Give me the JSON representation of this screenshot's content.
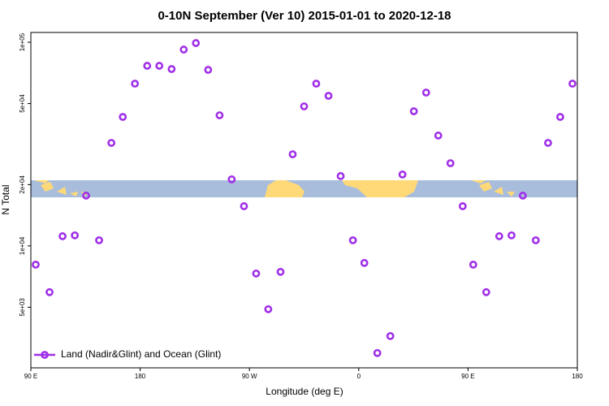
{
  "chart_data": {
    "type": "scatter",
    "title": "0-10N September (Ver 10)   2015-01-01 to 2020-12-18",
    "xlabel": "Longitude (deg E)",
    "ylabel": "N Total",
    "yscale": "log",
    "xlim": [
      90,
      540
    ],
    "xticks": [
      {
        "value": 90,
        "label": "90 E"
      },
      180,
      {
        "value": 270,
        "label": "90 W"
      },
      {
        "value": 360,
        "label": "0"
      },
      {
        "value": 450,
        "label": "90 E"
      },
      {
        "value": 540,
        "label": "180"
      }
    ],
    "ylim": [
      2520,
      111700
    ],
    "yticks": [
      {
        "value": 5000,
        "label": "5e+03"
      },
      {
        "value": 10000,
        "label": "1e+04"
      },
      {
        "value": 20000,
        "label": "2e+04"
      },
      {
        "value": 50000,
        "label": "5e+04"
      },
      {
        "value": 100000,
        "label": "1e+05"
      }
    ],
    "legend": "lower left",
    "x": [
      94.0,
      105.4,
      116.1,
      126.2,
      135.5,
      146.2,
      156.3,
      165.7,
      175.7,
      185.8,
      195.8,
      205.9,
      215.9,
      225.9,
      236.0,
      245.4,
      255.4,
      265.5,
      275.5,
      285.5,
      295.6,
      305.6,
      315.0,
      325.0,
      335.1,
      345.1,
      355.2,
      364.6,
      375.3,
      386.0,
      396.0,
      405.4,
      415.5,
      425.5,
      435.5,
      445.6,
      454.3,
      465.0,
      475.7,
      485.8,
      495.1,
      505.8,
      515.9,
      525.9,
      536.0
    ],
    "series": [
      {
        "name": "Land (Nadir&Glint) and Ocean (Glint)",
        "color": "#a030e8",
        "values": [
          8094,
          5929,
          11160,
          11270,
          17660,
          10660,
          32060,
          42990,
          62630,
          76630,
          76630,
          73880,
          92070,
          99080,
          73200,
          43800,
          21230,
          15670,
          7320,
          4890,
          7460,
          28190,
          48450,
          62630,
          54580,
          22030,
          10660,
          8250,
          2980,
          3610,
          22430,
          45850,
          56620,
          34830,
          25480,
          15670,
          8094,
          5929,
          11160,
          11270,
          17660,
          10660,
          32060,
          42990,
          62630
        ]
      }
    ]
  }
}
